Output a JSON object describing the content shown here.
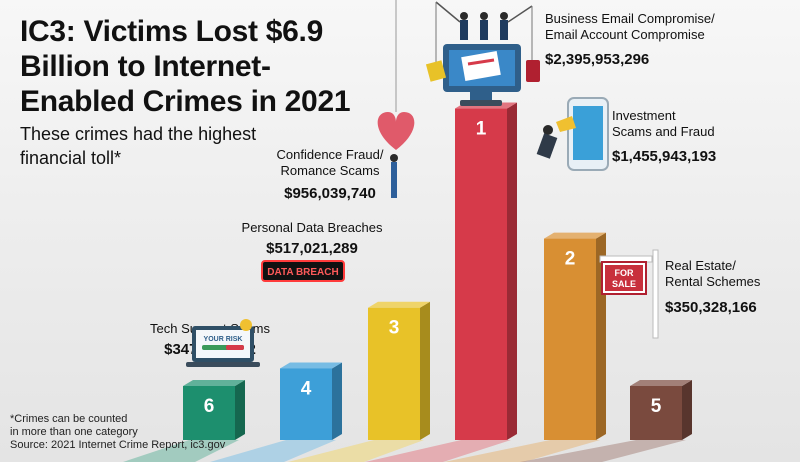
{
  "title": "IC3: Victims Lost $6.9 Billion to Internet-Enabled Crimes in 2021",
  "subtitle": "These crimes had the highest financial toll*",
  "footnote": {
    "line1": "*Crimes can be counted",
    "line2": "in more than one category",
    "source": "Source: 2021 Internet Crime Report, ic3.gov"
  },
  "decor": {
    "data_breach_sign": "DATA BREACH",
    "your_risk_label": "YOUR RISK",
    "for_sale_line1": "FOR",
    "for_sale_line2": "SALE",
    "icons": [
      "anglers-fishing-icon",
      "laptop-phishing-icon",
      "heart-balloon-icon",
      "data-breach-sign-icon",
      "risk-meter-laptop-icon",
      "thief-phone-icon",
      "for-sale-sign-icon"
    ]
  },
  "chart_data": {
    "type": "bar",
    "title": "IC3: Victims Lost $6.9 Billion to Internet-Enabled Crimes in 2021",
    "subtitle": "These crimes had the highest financial toll*",
    "xlabel": "",
    "ylabel": "",
    "grid": false,
    "legend": "none",
    "ylim": [
      0,
      2400000000
    ],
    "bars": [
      {
        "rank": "6",
        "label_lines": [
          "Tech Support Scams"
        ],
        "value": 347657432,
        "value_label": "$347,657,432",
        "color": "#1d8f6e"
      },
      {
        "rank": "4",
        "label_lines": [
          "Personal Data Breaches"
        ],
        "value": 517021289,
        "value_label": "$517,021,289",
        "color": "#3d9fd8"
      },
      {
        "rank": "3",
        "label_lines": [
          "Confidence Fraud/",
          "Romance Scams"
        ],
        "value": 956039740,
        "value_label": "$956,039,740",
        "color": "#e8c228"
      },
      {
        "rank": "1",
        "label_lines": [
          "Business Email Compromise/",
          "Email Account Compromise"
        ],
        "value": 2395953296,
        "value_label": "$2,395,953,296",
        "color": "#d63a4a"
      },
      {
        "rank": "2",
        "label_lines": [
          "Investment",
          "Scams and Fraud"
        ],
        "value": 1455943193,
        "value_label": "$1,455,943,193",
        "color": "#d88f33"
      },
      {
        "rank": "5",
        "label_lines": [
          "Real Estate/",
          "Rental Schemes"
        ],
        "value": 350328166,
        "value_label": "$350,328,166",
        "color": "#7a4a3e"
      }
    ]
  }
}
